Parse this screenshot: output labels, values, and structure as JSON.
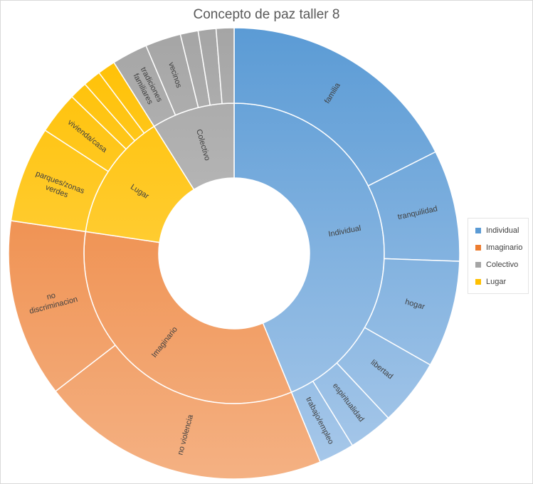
{
  "chart_data": {
    "type": "sunburst",
    "title": "Concepto de paz taller 8",
    "legend_position": "right",
    "categories": [
      {
        "name": "Individual",
        "color": "#5B9BD5",
        "gradient": [
          "#5B9BD5",
          "#A9C9EA"
        ],
        "children": [
          {
            "name": "familia",
            "value": 11
          },
          {
            "name": "tranquilidad",
            "value": 5
          },
          {
            "name": "hogar",
            "value": 4.8
          },
          {
            "name": "libertad",
            "value": 3
          },
          {
            "name": "espiritualidad",
            "value": 2
          },
          {
            "name": "trabajo/empleo",
            "value": 1.6
          }
        ]
      },
      {
        "name": "Imaginario",
        "color": "#ED7D31",
        "gradient": [
          "#ED7D31",
          "#F4B183"
        ],
        "children": [
          {
            "name": "no violencia",
            "value": 13
          },
          {
            "name": "no discriminacion",
            "value": 8
          }
        ]
      },
      {
        "name": "Lugar",
        "color": "#FFC000",
        "gradient": [
          "#FFC000",
          "#FFD966"
        ],
        "children": [
          {
            "name": "parques/zonas verdes",
            "value": 4.3
          },
          {
            "name": "vivienda/casa",
            "value": 1.9
          },
          {
            "name": "",
            "value": 0.8
          },
          {
            "name": "",
            "value": 0.8
          },
          {
            "name": "",
            "value": 0.8
          }
        ]
      },
      {
        "name": "Colectivo",
        "color": "#A5A5A5",
        "gradient": [
          "#A5A5A5",
          "#D0D0D0"
        ],
        "children": [
          {
            "name": "tradiciones familiares",
            "value": 1.6
          },
          {
            "name": "vecinos",
            "value": 1.6
          },
          {
            "name": "",
            "value": 0.8
          },
          {
            "name": "",
            "value": 0.8
          },
          {
            "name": "",
            "value": 0.8
          }
        ]
      }
    ],
    "legend": [
      "Individual",
      "Imaginario",
      "Colectivo",
      "Lugar"
    ]
  }
}
